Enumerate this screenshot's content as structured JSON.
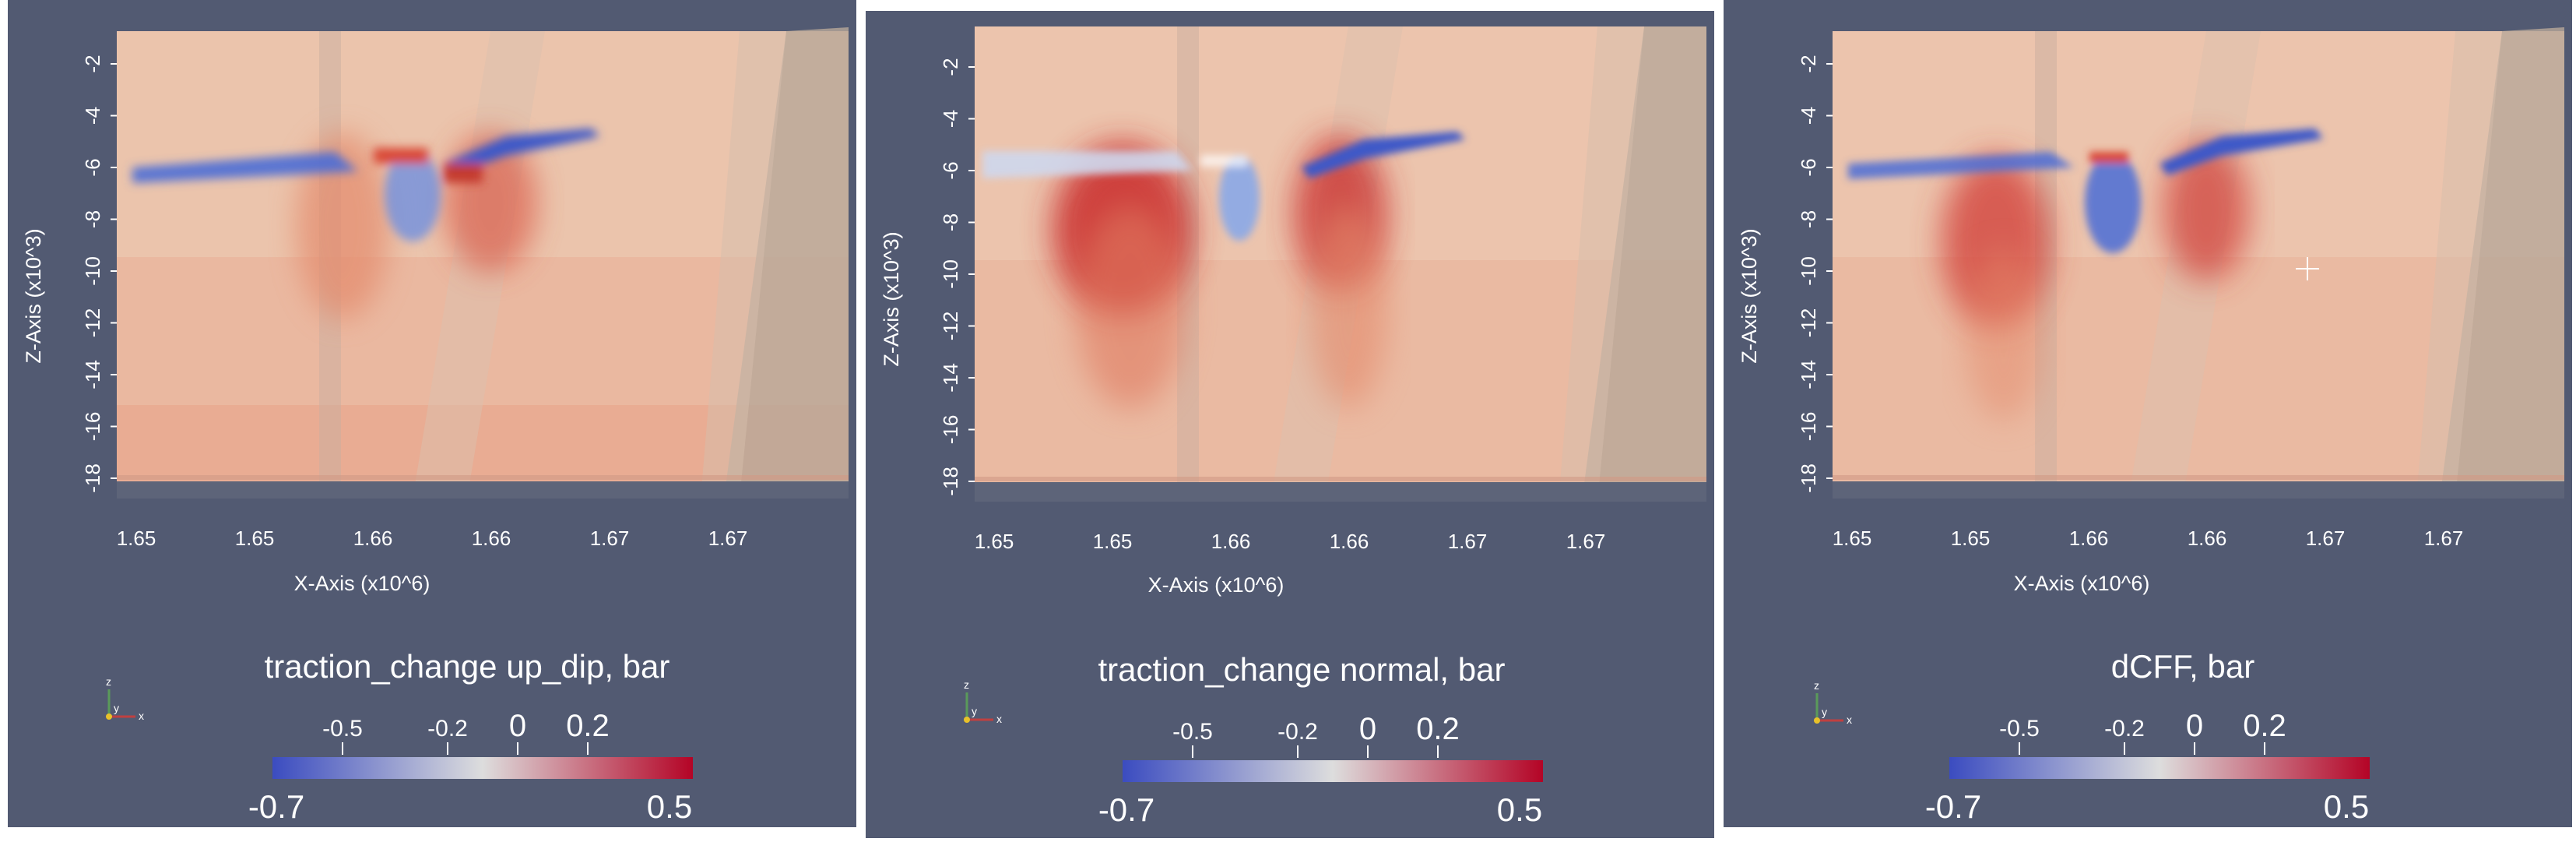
{
  "colors": {
    "background": "#525a72",
    "blue": "#3b4cc0",
    "neutral": "#dddddd",
    "red": "#b40426"
  },
  "panels": [
    {
      "id": "p1",
      "colorbar": {
        "title": "traction_change up_dip, bar",
        "min_label": "-0.7",
        "max_label": "0.5",
        "ticks": [
          "-0.5",
          "-0.2",
          "0",
          "0.2"
        ]
      },
      "marker": false
    },
    {
      "id": "p2",
      "colorbar": {
        "title": "traction_change normal, bar",
        "min_label": "-0.7",
        "max_label": "0.5",
        "ticks": [
          "-0.5",
          "-0.2",
          "0",
          "0.2"
        ]
      },
      "marker": false
    },
    {
      "id": "p3",
      "colorbar": {
        "title": "dCFF, bar",
        "min_label": "-0.7",
        "max_label": "0.5",
        "ticks": [
          "-0.5",
          "-0.2",
          "0",
          "0.2"
        ]
      },
      "marker": true
    }
  ],
  "chart_data": [
    {
      "type": "heatmap",
      "xlabel": "X-Axis (x10^6)",
      "ylabel": "Z-Axis (x10^3)",
      "x_ticks": [
        "1.65",
        "1.65",
        "1.66",
        "1.66",
        "1.67",
        "1.67"
      ],
      "y_ticks": [
        "-2",
        "-4",
        "-6",
        "-8",
        "-10",
        "-12",
        "-14",
        "-16",
        "-18"
      ],
      "colorbar_title": "traction_change up_dip, bar",
      "color_range": [
        -0.7,
        0.5
      ],
      "colorbar_ticks": [
        -0.5,
        -0.2,
        0,
        0.2
      ]
    },
    {
      "type": "heatmap",
      "xlabel": "X-Axis (x10^6)",
      "ylabel": "Z-Axis (x10^3)",
      "x_ticks": [
        "1.65",
        "1.65",
        "1.66",
        "1.66",
        "1.67",
        "1.67"
      ],
      "y_ticks": [
        "-2",
        "-4",
        "-6",
        "-8",
        "-10",
        "-12",
        "-14",
        "-16",
        "-18"
      ],
      "colorbar_title": "traction_change normal, bar",
      "color_range": [
        -0.7,
        0.5
      ],
      "colorbar_ticks": [
        -0.5,
        -0.2,
        0,
        0.2
      ]
    },
    {
      "type": "heatmap",
      "xlabel": "X-Axis (x10^6)",
      "ylabel": "Z-Axis (x10^3)",
      "x_ticks": [
        "1.65",
        "1.65",
        "1.66",
        "1.66",
        "1.67",
        "1.67"
      ],
      "y_ticks": [
        "-2",
        "-4",
        "-6",
        "-8",
        "-10",
        "-12",
        "-14",
        "-16",
        "-18"
      ],
      "colorbar_title": "dCFF, bar",
      "color_range": [
        -0.7,
        0.5
      ],
      "colorbar_ticks": [
        -0.5,
        -0.2,
        0,
        0.2
      ]
    }
  ],
  "orientation_axes": {
    "x": "x",
    "y": "y",
    "z": "z"
  }
}
